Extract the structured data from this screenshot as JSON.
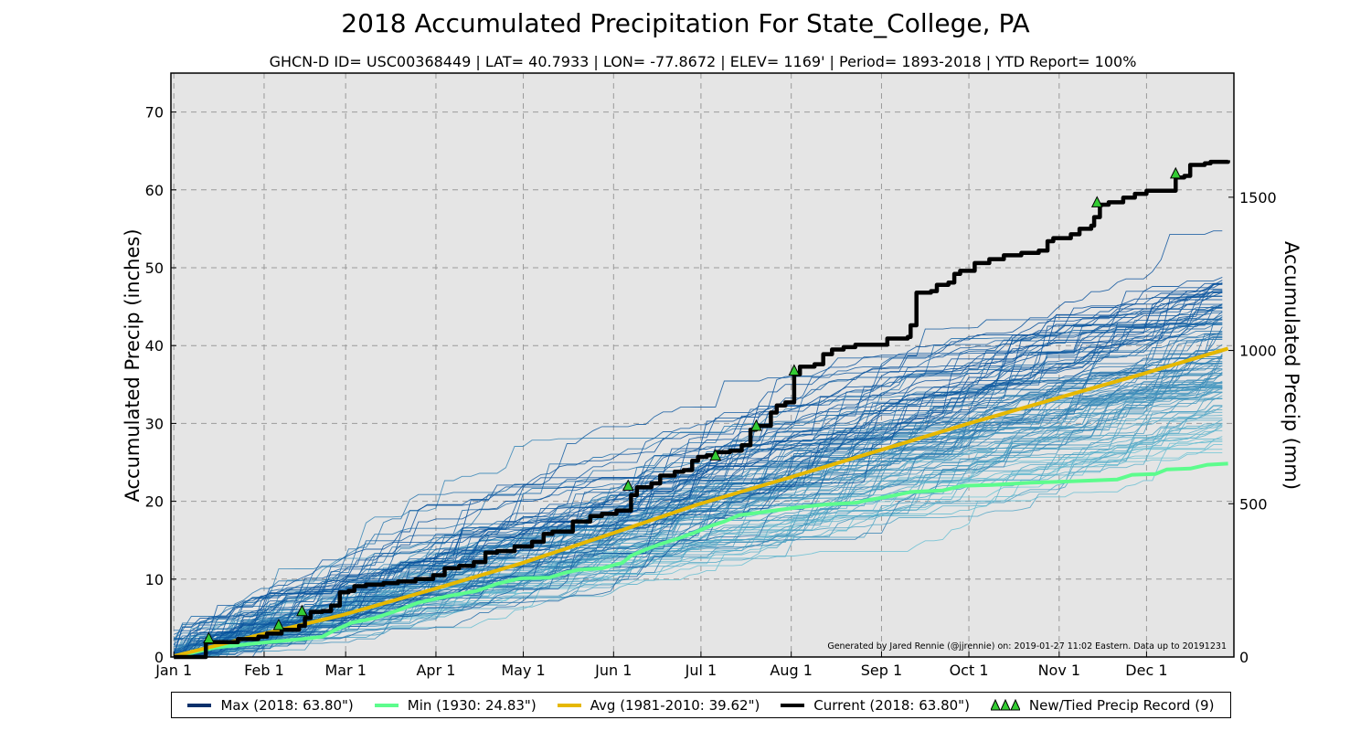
{
  "chart_data": {
    "type": "line",
    "title": "2018 Accumulated Precipitation For State_College, PA",
    "subtitle": "GHCN-D ID= USC00368449 | LAT= 40.7933 | LON= -77.8672 | ELEV= 1169' | Period= 1893-2018 |  YTD Report= 100%",
    "ylabel": "Accumulated Precip (inches)",
    "ylabel_right": "Accumulated Precip (mm)",
    "ylim": [
      0,
      75
    ],
    "xlim": [
      0,
      365
    ],
    "grid": true,
    "legend_position": "bottom",
    "credit": "Generated by Jared Rennie (@jjrennie) on: 2019-01-27 11:02 Eastern. Data up to 20191231",
    "x_ticks": [
      {
        "day": 1,
        "label": "Jan 1"
      },
      {
        "day": 32,
        "label": "Feb 1"
      },
      {
        "day": 60,
        "label": "Mar 1"
      },
      {
        "day": 91,
        "label": "Apr 1"
      },
      {
        "day": 121,
        "label": "May 1"
      },
      {
        "day": 152,
        "label": "Jun 1"
      },
      {
        "day": 182,
        "label": "Jul 1"
      },
      {
        "day": 213,
        "label": "Aug 1"
      },
      {
        "day": 244,
        "label": "Sep 1"
      },
      {
        "day": 274,
        "label": "Oct 1"
      },
      {
        "day": 305,
        "label": "Nov 1"
      },
      {
        "day": 335,
        "label": "Dec 1"
      }
    ],
    "y_ticks": [
      0,
      10,
      20,
      30,
      40,
      50,
      60,
      70
    ],
    "y_ticks_right_mm": [
      0,
      500,
      1000,
      1500
    ],
    "series": [
      {
        "name": "Current (2018:  63.80\")",
        "color": "#000000",
        "points": [
          [
            1,
            0
          ],
          [
            11,
            0
          ],
          [
            12,
            1.9
          ],
          [
            23,
            2.3
          ],
          [
            30,
            2.6
          ],
          [
            33,
            3.0
          ],
          [
            38,
            3.5
          ],
          [
            44,
            4.0
          ],
          [
            46,
            5.0
          ],
          [
            48,
            5.8
          ],
          [
            52,
            5.9
          ],
          [
            55,
            6.6
          ],
          [
            58,
            8.3
          ],
          [
            61,
            8.5
          ],
          [
            63,
            9.1
          ],
          [
            67,
            9.3
          ],
          [
            73,
            9.5
          ],
          [
            78,
            9.7
          ],
          [
            84,
            10.0
          ],
          [
            90,
            10.5
          ],
          [
            94,
            11.4
          ],
          [
            99,
            11.7
          ],
          [
            104,
            12.2
          ],
          [
            108,
            13.4
          ],
          [
            112,
            13.6
          ],
          [
            118,
            14.2
          ],
          [
            124,
            14.8
          ],
          [
            128,
            15.8
          ],
          [
            131,
            16.1
          ],
          [
            138,
            17.4
          ],
          [
            144,
            18.1
          ],
          [
            148,
            18.4
          ],
          [
            153,
            18.8
          ],
          [
            158,
            20.8
          ],
          [
            160,
            21.8
          ],
          [
            165,
            22.3
          ],
          [
            168,
            23.3
          ],
          [
            173,
            23.8
          ],
          [
            176,
            24.0
          ],
          [
            179,
            25.2
          ],
          [
            181,
            25.7
          ],
          [
            184,
            25.9
          ],
          [
            187,
            26.3
          ],
          [
            192,
            26.5
          ],
          [
            196,
            27.2
          ],
          [
            199,
            29.2
          ],
          [
            201,
            29.7
          ],
          [
            206,
            31.4
          ],
          [
            208,
            32.3
          ],
          [
            211,
            32.7
          ],
          [
            214,
            36.3
          ],
          [
            216,
            37.3
          ],
          [
            221,
            37.6
          ],
          [
            224,
            38.9
          ],
          [
            227,
            39.5
          ],
          [
            231,
            39.8
          ],
          [
            235,
            40.1
          ],
          [
            244,
            40.1
          ],
          [
            246,
            40.9
          ],
          [
            253,
            41.1
          ],
          [
            254,
            42.6
          ],
          [
            256,
            46.8
          ],
          [
            261,
            47.0
          ],
          [
            263,
            47.8
          ],
          [
            267,
            48.1
          ],
          [
            269,
            49.2
          ],
          [
            271,
            49.6
          ],
          [
            276,
            50.6
          ],
          [
            281,
            51.1
          ],
          [
            286,
            51.6
          ],
          [
            292,
            51.9
          ],
          [
            298,
            52.2
          ],
          [
            301,
            53.4
          ],
          [
            303,
            53.8
          ],
          [
            309,
            54.3
          ],
          [
            312,
            55.0
          ],
          [
            316,
            55.4
          ],
          [
            317,
            56.5
          ],
          [
            319,
            58.1
          ],
          [
            322,
            58.4
          ],
          [
            327,
            59.0
          ],
          [
            331,
            59.5
          ],
          [
            335,
            59.9
          ],
          [
            343,
            59.9
          ],
          [
            345,
            61.6
          ],
          [
            348,
            61.8
          ],
          [
            350,
            63.2
          ],
          [
            355,
            63.4
          ],
          [
            357,
            63.6
          ],
          [
            363,
            63.8
          ]
        ]
      },
      {
        "name": "Avg (1981-2010:  39.62\")",
        "color": "#e6b800",
        "points": [
          [
            1,
            0.1
          ],
          [
            30,
            2.8
          ],
          [
            59,
            5.4
          ],
          [
            90,
            8.7
          ],
          [
            120,
            12.0
          ],
          [
            151,
            15.8
          ],
          [
            181,
            19.6
          ],
          [
            212,
            23.0
          ],
          [
            243,
            26.5
          ],
          [
            273,
            29.9
          ],
          [
            304,
            33.2
          ],
          [
            334,
            36.4
          ],
          [
            363,
            39.62
          ]
        ]
      },
      {
        "name": "Min (1930:  24.83\")",
        "color": "#5dfc8d",
        "points": [
          [
            1,
            0
          ],
          [
            15,
            1.2
          ],
          [
            30,
            1.8
          ],
          [
            45,
            2.3
          ],
          [
            52,
            2.6
          ],
          [
            56,
            3.4
          ],
          [
            62,
            4.4
          ],
          [
            70,
            5.0
          ],
          [
            78,
            6.0
          ],
          [
            85,
            7.0
          ],
          [
            95,
            7.8
          ],
          [
            105,
            8.5
          ],
          [
            112,
            9.4
          ],
          [
            120,
            10.1
          ],
          [
            130,
            10.2
          ],
          [
            135,
            10.8
          ],
          [
            140,
            11.2
          ],
          [
            148,
            11.4
          ],
          [
            155,
            12.1
          ],
          [
            158,
            13.0
          ],
          [
            163,
            13.8
          ],
          [
            168,
            14.5
          ],
          [
            174,
            15.2
          ],
          [
            180,
            16.0
          ],
          [
            185,
            16.8
          ],
          [
            190,
            17.4
          ],
          [
            195,
            18.2
          ],
          [
            203,
            18.6
          ],
          [
            215,
            19.2
          ],
          [
            225,
            19.6
          ],
          [
            235,
            19.8
          ],
          [
            240,
            20.2
          ],
          [
            245,
            20.5
          ],
          [
            254,
            21.2
          ],
          [
            265,
            21.4
          ],
          [
            272,
            22.0
          ],
          [
            282,
            22.1
          ],
          [
            295,
            22.4
          ],
          [
            305,
            22.5
          ],
          [
            318,
            22.7
          ],
          [
            325,
            22.8
          ],
          [
            330,
            23.4
          ],
          [
            338,
            23.5
          ],
          [
            342,
            24.1
          ],
          [
            350,
            24.2
          ],
          [
            356,
            24.7
          ],
          [
            363,
            24.83
          ]
        ]
      }
    ],
    "records": [
      [
        13,
        2.4
      ],
      [
        37,
        4.1
      ],
      [
        45,
        5.9
      ],
      [
        157,
        22.0
      ],
      [
        187,
        25.9
      ],
      [
        201,
        29.7
      ],
      [
        214,
        36.8
      ],
      [
        318,
        58.4
      ],
      [
        345,
        62.1
      ]
    ],
    "legend": [
      {
        "label": "Max (2018:  63.80\")",
        "color": "#08306b",
        "marker": "line"
      },
      {
        "label": "Min (1930:  24.83\")",
        "color": "#5dfc8d",
        "marker": "line"
      },
      {
        "label": "Avg (1981-2010:  39.62\")",
        "color": "#e6b800",
        "marker": "line"
      },
      {
        "label": "Current (2018:  63.80\")",
        "color": "#000000",
        "marker": "line"
      },
      {
        "label": "New/Tied Precip Record (9)",
        "color": "#33cc33",
        "marker": "triangle"
      }
    ],
    "colors": {
      "background": "#e5e5e5",
      "historical_dark": "#08519c",
      "historical_light": "#6fc7d6",
      "record_marker": "#33cc33"
    }
  }
}
